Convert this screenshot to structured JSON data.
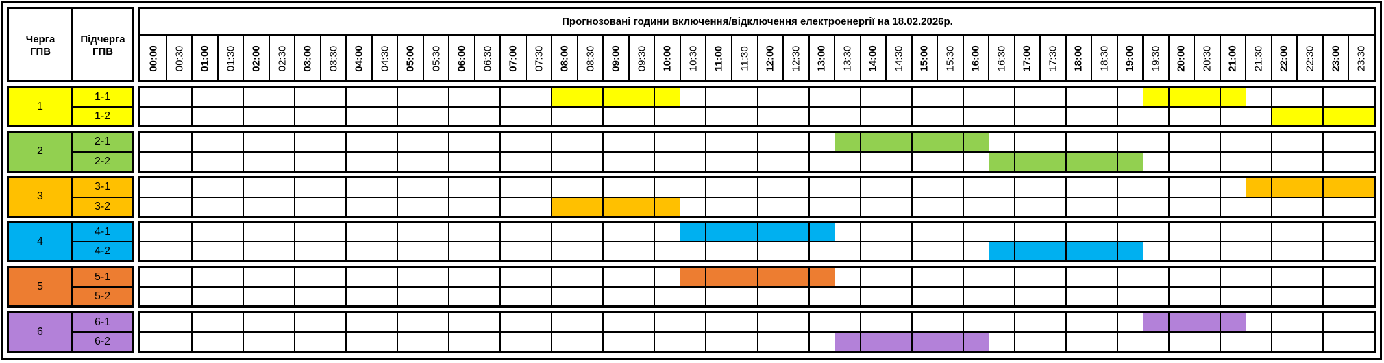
{
  "header": {
    "title": "Прогнозовані години включення/відключення електроенергії на 18.02.2026р.",
    "queue_label": "Черга ГПВ",
    "subqueue_label": "Підчерга ГПВ"
  },
  "times": [
    "00:00",
    "00:30",
    "01:00",
    "01:30",
    "02:00",
    "02:30",
    "03:00",
    "03:30",
    "04:00",
    "04:30",
    "05:00",
    "05:30",
    "06:00",
    "06:30",
    "07:00",
    "07:30",
    "08:00",
    "08:30",
    "09:00",
    "09:30",
    "10:00",
    "10:30",
    "11:00",
    "11:30",
    "12:00",
    "12:30",
    "13:00",
    "13:30",
    "14:00",
    "14:30",
    "15:00",
    "15:30",
    "16:00",
    "16:30",
    "17:00",
    "17:30",
    "18:00",
    "18:30",
    "19:00",
    "19:30",
    "20:00",
    "20:30",
    "21:00",
    "21:30",
    "22:00",
    "22:30",
    "23:00",
    "23:30"
  ],
  "groups": [
    {
      "label": "1",
      "color": "#FFFF00",
      "subgroups": [
        {
          "label": "1-1",
          "outages": [
            [
              "08:00",
              "10:30"
            ],
            [
              "19:30",
              "21:30"
            ]
          ]
        },
        {
          "label": "1-2",
          "outages": [
            [
              "22:00",
              "24:00"
            ]
          ]
        }
      ]
    },
    {
      "label": "2",
      "color": "#92D050",
      "subgroups": [
        {
          "label": "2-1",
          "outages": [
            [
              "13:30",
              "16:30"
            ]
          ]
        },
        {
          "label": "2-2",
          "outages": [
            [
              "16:30",
              "19:30"
            ]
          ]
        }
      ]
    },
    {
      "label": "3",
      "color": "#FFC000",
      "subgroups": [
        {
          "label": "3-1",
          "outages": [
            [
              "21:30",
              "24:00"
            ]
          ]
        },
        {
          "label": "3-2",
          "outages": [
            [
              "08:00",
              "10:30"
            ]
          ]
        }
      ]
    },
    {
      "label": "4",
      "color": "#00B0F0",
      "subgroups": [
        {
          "label": "4-1",
          "outages": [
            [
              "10:30",
              "13:30"
            ]
          ]
        },
        {
          "label": "4-2",
          "outages": [
            [
              "16:30",
              "19:30"
            ]
          ]
        }
      ]
    },
    {
      "label": "5",
      "color": "#ED7D31",
      "subgroups": [
        {
          "label": "5-1",
          "outages": [
            [
              "10:30",
              "13:30"
            ]
          ]
        },
        {
          "label": "5-2",
          "outages": []
        }
      ]
    },
    {
      "label": "6",
      "color": "#B381D9",
      "subgroups": [
        {
          "label": "6-1",
          "outages": [
            [
              "19:30",
              "21:30"
            ]
          ]
        },
        {
          "label": "6-2",
          "outages": [
            [
              "13:30",
              "16:30"
            ]
          ]
        }
      ]
    }
  ]
}
